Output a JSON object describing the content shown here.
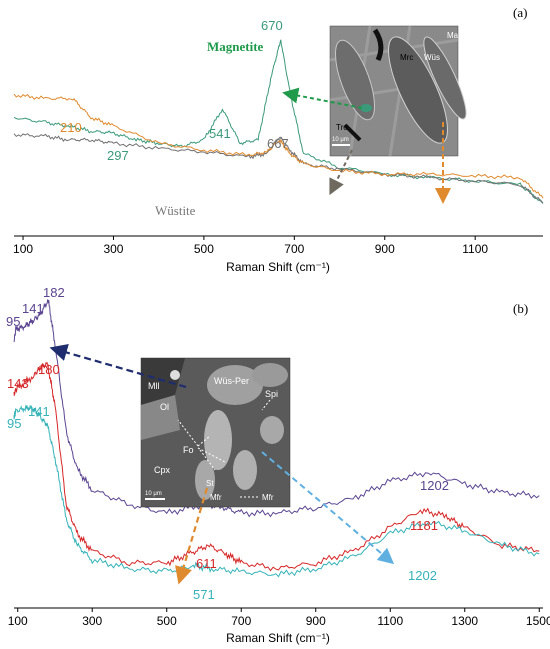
{
  "panel_a": {
    "panel_label": "(a)",
    "xlabel": "Raman Shift (cm⁻¹)",
    "tick_labels": [
      "100",
      "300",
      "500",
      "700",
      "900",
      "1100"
    ],
    "legend_magnetite": "Magnetite",
    "legend_wustite": "Wüstite",
    "peak_labels": [
      "210",
      "297",
      "541",
      "670",
      "667"
    ],
    "inset": {
      "labels": [
        "Mag",
        "Mrc",
        "Wüs",
        "Tro"
      ],
      "scale_text": "10 μm"
    }
  },
  "panel_b": {
    "panel_label": "(b)",
    "xlabel": "Raman Shift (cm⁻¹)",
    "tick_labels": [
      "100",
      "300",
      "500",
      "700",
      "900",
      "1100",
      "1300",
      "1500"
    ],
    "peak_labels_purple": [
      "95",
      "141",
      "182",
      "1202"
    ],
    "peak_labels_red": [
      "143",
      "180",
      "611",
      "1181"
    ],
    "peak_labels_cyan": [
      "95",
      "141",
      "571",
      "1202"
    ],
    "inset": {
      "labels": [
        "Mll",
        "Wüs-Per",
        "Spi",
        "Ol",
        "Fo",
        "Cpx",
        "St",
        "Mfr",
        "Mfr"
      ],
      "scale_text": "10 μm"
    }
  },
  "colors": {
    "magnetite": "#3a9a7a",
    "wustite": "#707070",
    "orange": "#e08a2e",
    "purple": "#5b4590",
    "red": "#d62728",
    "cyan": "#35b3b8",
    "navy": "#1f2d6e",
    "light_blue": "#5fb0e0"
  },
  "chart_data": [
    {
      "type": "line",
      "panel": "(a)",
      "xlabel": "Raman Shift (cm⁻¹)",
      "xlim": [
        80,
        1250
      ],
      "series": [
        {
          "name": "Magnetite",
          "color": "#3a9a7a",
          "x": [
            80,
            150,
            200,
            250,
            297,
            350,
            400,
            450,
            500,
            541,
            580,
            620,
            650,
            670,
            690,
            720,
            800,
            900,
            1000,
            1100,
            1200,
            1250
          ],
          "y": [
            0.55,
            0.52,
            0.5,
            0.47,
            0.46,
            0.42,
            0.4,
            0.38,
            0.42,
            0.6,
            0.4,
            0.42,
            0.8,
            1.0,
            0.7,
            0.34,
            0.26,
            0.22,
            0.2,
            0.18,
            0.16,
            0.05
          ]
        },
        {
          "name": "Wüstite",
          "color": "#707070",
          "x": [
            80,
            150,
            200,
            250,
            300,
            400,
            500,
            600,
            640,
            667,
            690,
            720,
            800,
            900,
            1000,
            1100,
            1200,
            1250
          ],
          "y": [
            0.45,
            0.44,
            0.42,
            0.42,
            0.4,
            0.37,
            0.35,
            0.32,
            0.34,
            0.44,
            0.36,
            0.28,
            0.25,
            0.22,
            0.2,
            0.18,
            0.16,
            0.05
          ]
        },
        {
          "color": "#e08a2e",
          "x": [
            80,
            150,
            210,
            250,
            300,
            400,
            500,
            600,
            640,
            667,
            690,
            720,
            800,
            900,
            1000,
            1100,
            1200,
            1250
          ],
          "y": [
            0.68,
            0.66,
            0.66,
            0.55,
            0.5,
            0.4,
            0.36,
            0.33,
            0.35,
            0.42,
            0.34,
            0.28,
            0.24,
            0.22,
            0.22,
            0.21,
            0.2,
            0.08
          ]
        }
      ]
    },
    {
      "type": "line",
      "panel": "(b)",
      "xlabel": "Raman Shift (cm⁻¹)",
      "xlim": [
        90,
        1510
      ],
      "series": [
        {
          "color": "#5b4590",
          "x": [
            90,
            95,
            120,
            141,
            160,
            182,
            200,
            230,
            260,
            300,
            400,
            500,
            600,
            650,
            700,
            800,
            900,
            1000,
            1100,
            1202,
            1300,
            1400,
            1500
          ],
          "y": [
            0.86,
            0.9,
            0.91,
            0.93,
            0.95,
            1.0,
            0.85,
            0.55,
            0.42,
            0.35,
            0.3,
            0.27,
            0.3,
            0.29,
            0.27,
            0.27,
            0.29,
            0.32,
            0.38,
            0.41,
            0.37,
            0.34,
            0.33
          ]
        },
        {
          "color": "#d62728",
          "x": [
            90,
            100,
            143,
            160,
            180,
            200,
            230,
            260,
            300,
            400,
            500,
            560,
            611,
            660,
            700,
            800,
            900,
            1000,
            1100,
            1181,
            1250,
            1300,
            1400,
            1500
          ],
          "y": [
            0.68,
            0.7,
            0.74,
            0.77,
            0.78,
            0.64,
            0.3,
            0.2,
            0.14,
            0.1,
            0.1,
            0.13,
            0.16,
            0.13,
            0.1,
            0.08,
            0.1,
            0.14,
            0.22,
            0.28,
            0.26,
            0.22,
            0.16,
            0.14
          ]
        },
        {
          "color": "#35b3b8",
          "x": [
            90,
            95,
            120,
            141,
            160,
            180,
            200,
            230,
            260,
            300,
            400,
            500,
            571,
            620,
            700,
            800,
            900,
            1000,
            1100,
            1202,
            1300,
            1400,
            1500
          ],
          "y": [
            0.6,
            0.62,
            0.63,
            0.63,
            0.6,
            0.57,
            0.46,
            0.25,
            0.16,
            0.11,
            0.08,
            0.07,
            0.09,
            0.08,
            0.07,
            0.06,
            0.08,
            0.12,
            0.2,
            0.24,
            0.21,
            0.16,
            0.13
          ]
        }
      ]
    }
  ]
}
